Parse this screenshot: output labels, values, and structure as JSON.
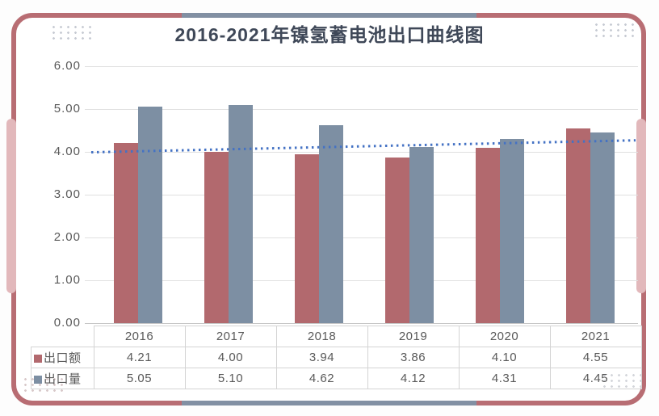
{
  "card": {
    "accent_border_color": "#b86d73",
    "border_segment_color": "#8290a3",
    "handle_color": "#e2b8bb"
  },
  "chart_data": {
    "type": "bar",
    "title": "2016-2021年镍氢蓄电池出口曲线图",
    "categories": [
      "2016",
      "2017",
      "2018",
      "2019",
      "2020",
      "2021"
    ],
    "series": [
      {
        "name": "出口额",
        "color": "#b2696e",
        "values": [
          4.21,
          4.0,
          3.94,
          3.86,
          4.1,
          4.55
        ]
      },
      {
        "name": "出口量",
        "color": "#7d8fa3",
        "values": [
          5.05,
          5.1,
          4.62,
          4.12,
          4.31,
          4.45
        ]
      }
    ],
    "trendline": {
      "for_series": "出口额",
      "start_value": 3.99,
      "end_value": 4.27,
      "style": "dotted",
      "color": "#4472c4"
    },
    "y_ticks": [
      "6.00",
      "5.00",
      "4.00",
      "3.00",
      "2.00",
      "1.00",
      "0.00"
    ],
    "ylim": [
      0,
      6
    ],
    "grid": true,
    "legend_position": "data-table-left",
    "data_table_shown": true
  }
}
